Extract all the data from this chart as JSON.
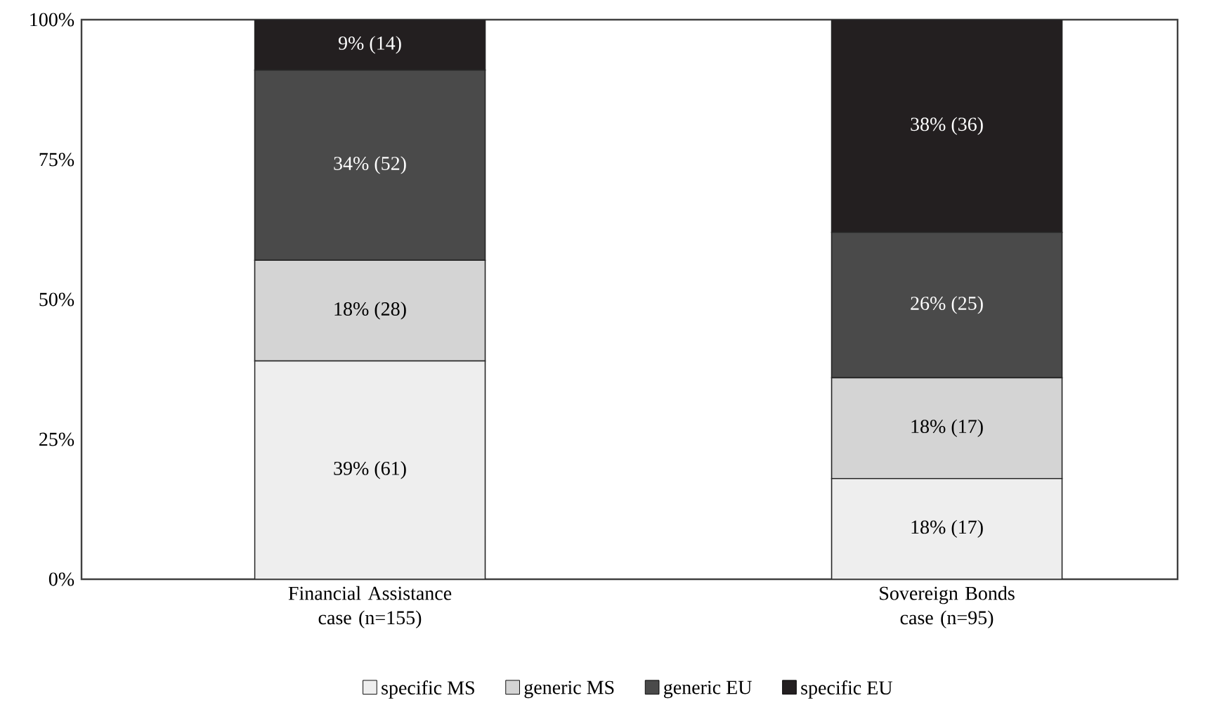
{
  "chart_data": {
    "type": "bar",
    "stacked": true,
    "categories": [
      "Financial Assistance case (n=155)",
      "Sovereign Bonds case (n=95)"
    ],
    "series": [
      {
        "name": "specific MS",
        "color": "#eeeeee",
        "values": [
          39,
          18
        ],
        "value_labels": [
          "39% (61)",
          "18% (17)"
        ]
      },
      {
        "name": "generic MS",
        "color": "#d4d4d4",
        "values": [
          18,
          18
        ],
        "value_labels": [
          "18% (28)",
          "18% (17)"
        ]
      },
      {
        "name": "generic EU",
        "color": "#4a4a4a",
        "values": [
          34,
          26
        ],
        "value_labels": [
          "34% (52)",
          "26% (25)"
        ]
      },
      {
        "name": "specific EU",
        "color": "#231f20",
        "values": [
          9,
          38
        ],
        "value_labels": [
          "9% (14)",
          "38% (36)"
        ]
      }
    ],
    "ylim": [
      0,
      100
    ],
    "yticks": [
      {
        "value": 0,
        "label": "0%"
      },
      {
        "value": 25,
        "label": "25%"
      },
      {
        "value": 50,
        "label": "50%"
      },
      {
        "value": 75,
        "label": "75%"
      },
      {
        "value": 100,
        "label": "100%"
      }
    ],
    "grid": false,
    "legend": "bottom"
  }
}
